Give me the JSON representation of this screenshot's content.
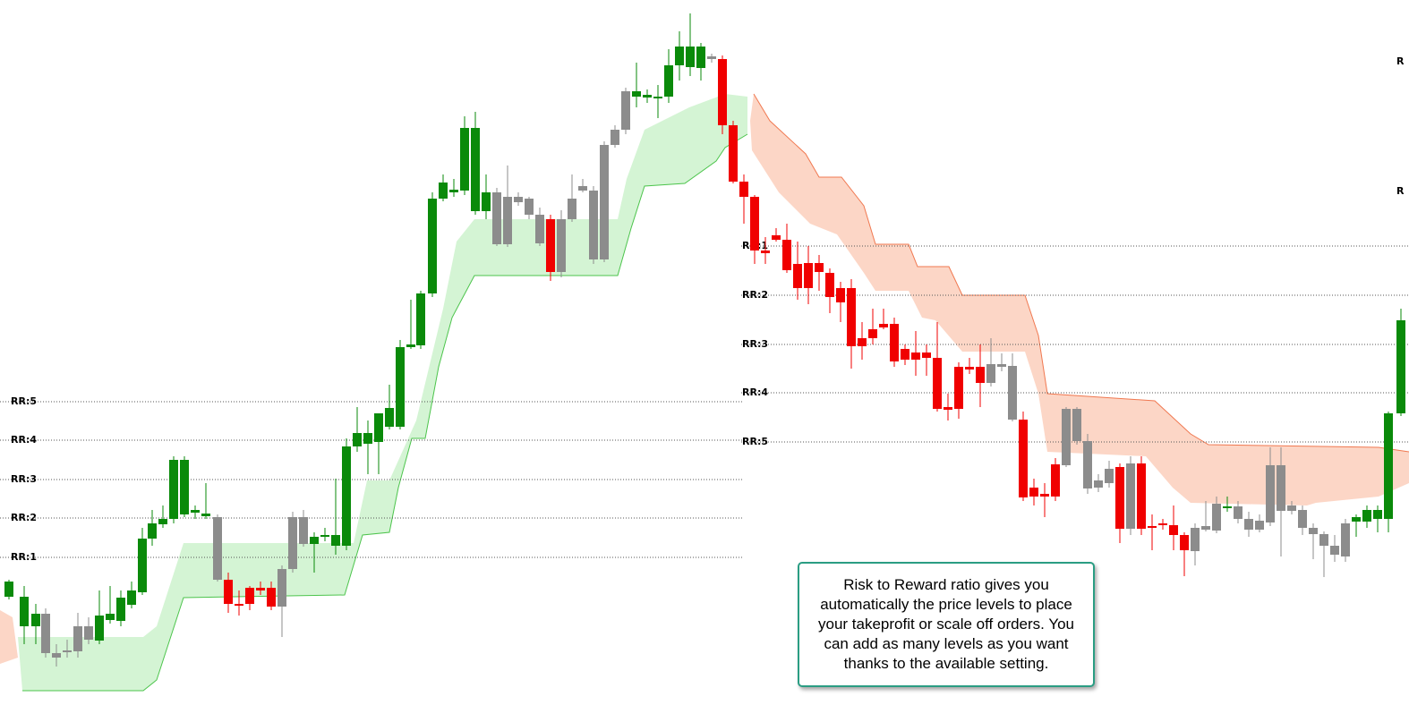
{
  "levels_left": [
    "RR:5",
    "RR:4",
    "RR:3",
    "RR:2",
    "RR:1"
  ],
  "levels_right": [
    "RR:1",
    "RR:2",
    "RR:3",
    "RR:4",
    "RR:5"
  ],
  "edge_labels": [
    "R",
    "R"
  ],
  "annotation": "Risk to Reward ratio gives you automatically the price levels to place your takeprofit or scale off orders. You can add as many levels as you want thanks to the available setting."
}
